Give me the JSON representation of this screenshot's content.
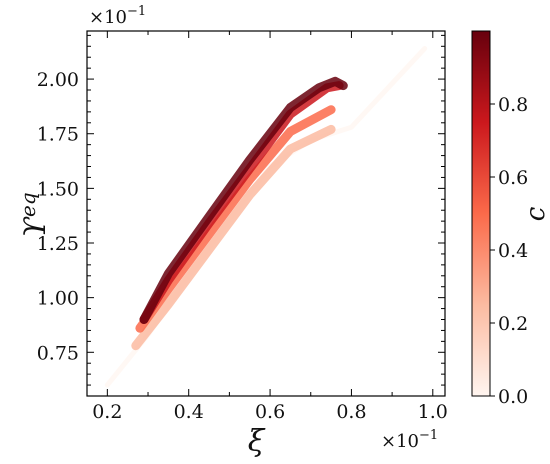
{
  "chart_data": {
    "type": "scatter",
    "title": "",
    "xlabel": "ξ",
    "ylabel": "ϒ",
    "ylabel_superscript": "eq",
    "x_scale_label": "×10",
    "x_scale_exponent": "−1",
    "y_scale_label": "×10",
    "y_scale_exponent": "−1",
    "xlim": [
      0.15,
      1.03
    ],
    "ylim": [
      0.55,
      2.22
    ],
    "x_ticks": [
      0.2,
      0.4,
      0.6,
      0.8,
      1.0
    ],
    "x_tick_labels": [
      "0.2",
      "0.4",
      "0.6",
      "0.8",
      "1.0"
    ],
    "y_ticks": [
      0.75,
      1.0,
      1.25,
      1.5,
      1.75,
      2.0
    ],
    "y_tick_labels": [
      "0.75",
      "1.00",
      "1.25",
      "1.50",
      "1.75",
      "2.00"
    ],
    "grid": false,
    "colorbar": {
      "label": "c",
      "range": [
        0.0,
        1.0
      ],
      "ticks": [
        0.0,
        0.2,
        0.4,
        0.6,
        0.8
      ],
      "tick_labels": [
        "0.0",
        "0.2",
        "0.4",
        "0.6",
        "0.8"
      ],
      "colormap": "Reds",
      "color_low": "#fff5f0",
      "color_high": "#67000d"
    },
    "bands": [
      {
        "c": 0.0,
        "x": [
          0.2,
          0.3,
          0.4,
          0.5,
          0.6,
          0.7,
          0.8,
          0.9,
          0.98
        ],
        "y": [
          0.6,
          0.83,
          1.1,
          1.36,
          1.6,
          1.72,
          1.78,
          1.98,
          2.14
        ]
      },
      {
        "c": 0.25,
        "x": [
          0.27,
          0.35,
          0.45,
          0.55,
          0.65,
          0.75
        ],
        "y": [
          0.78,
          0.97,
          1.22,
          1.47,
          1.68,
          1.77
        ]
      },
      {
        "c": 0.5,
        "x": [
          0.28,
          0.35,
          0.45,
          0.55,
          0.65,
          0.75
        ],
        "y": [
          0.86,
          1.04,
          1.29,
          1.54,
          1.76,
          1.86
        ]
      },
      {
        "c": 0.75,
        "x": [
          0.29,
          0.35,
          0.45,
          0.55,
          0.65,
          0.74,
          0.77
        ],
        "y": [
          0.9,
          1.08,
          1.34,
          1.59,
          1.84,
          1.96,
          1.97
        ]
      },
      {
        "c": 1.0,
        "x": [
          0.29,
          0.35,
          0.45,
          0.55,
          0.65,
          0.72,
          0.76,
          0.78
        ],
        "y": [
          0.9,
          1.11,
          1.37,
          1.63,
          1.87,
          1.96,
          1.99,
          1.97
        ]
      }
    ]
  }
}
